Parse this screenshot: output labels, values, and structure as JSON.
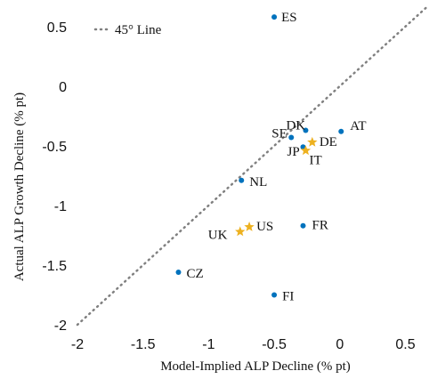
{
  "chart_data": {
    "type": "scatter",
    "title": "",
    "xlabel": "Model-Implied ALP Decline (% pt)",
    "ylabel": "Actual ALP Growth Decline (% pt)",
    "xlim": [
      -2,
      0.68
    ],
    "ylim": [
      -2,
      0.7
    ],
    "xticks": [
      -2,
      -1.5,
      -1,
      -0.5,
      0,
      0.5
    ],
    "yticks": [
      -2,
      -1.5,
      -1,
      -0.5,
      0,
      0.5
    ],
    "grid": false,
    "legend": {
      "position": "top-left",
      "entries": [
        {
          "label": "45° Line",
          "style": "dotted",
          "color": "#808080"
        }
      ]
    },
    "reference_line": {
      "from": [
        -2,
        -2
      ],
      "to": [
        0.68,
        0.68
      ]
    },
    "series": [
      {
        "marker": "circle",
        "color": "#0072bd",
        "points": [
          {
            "label": "ES",
            "x": -0.5,
            "y": 0.58
          },
          {
            "label": "AT",
            "x": 0.01,
            "y": -0.38
          },
          {
            "label": "DK",
            "x": -0.26,
            "y": -0.37
          },
          {
            "label": "SE",
            "x": -0.37,
            "y": -0.43
          },
          {
            "label": "JP",
            "x": -0.28,
            "y": -0.51
          },
          {
            "label": "NL",
            "x": -0.75,
            "y": -0.79
          },
          {
            "label": "FR",
            "x": -0.28,
            "y": -1.17
          },
          {
            "label": "CZ",
            "x": -1.23,
            "y": -1.56
          },
          {
            "label": "FI",
            "x": -0.5,
            "y": -1.75
          }
        ]
      },
      {
        "marker": "star",
        "color": "#edb120",
        "points": [
          {
            "label": "DE",
            "x": -0.21,
            "y": -0.47
          },
          {
            "label": "IT",
            "x": -0.26,
            "y": -0.54
          },
          {
            "label": "US",
            "x": -0.69,
            "y": -1.18
          },
          {
            "label": "UK",
            "x": -0.76,
            "y": -1.22
          }
        ]
      }
    ]
  }
}
